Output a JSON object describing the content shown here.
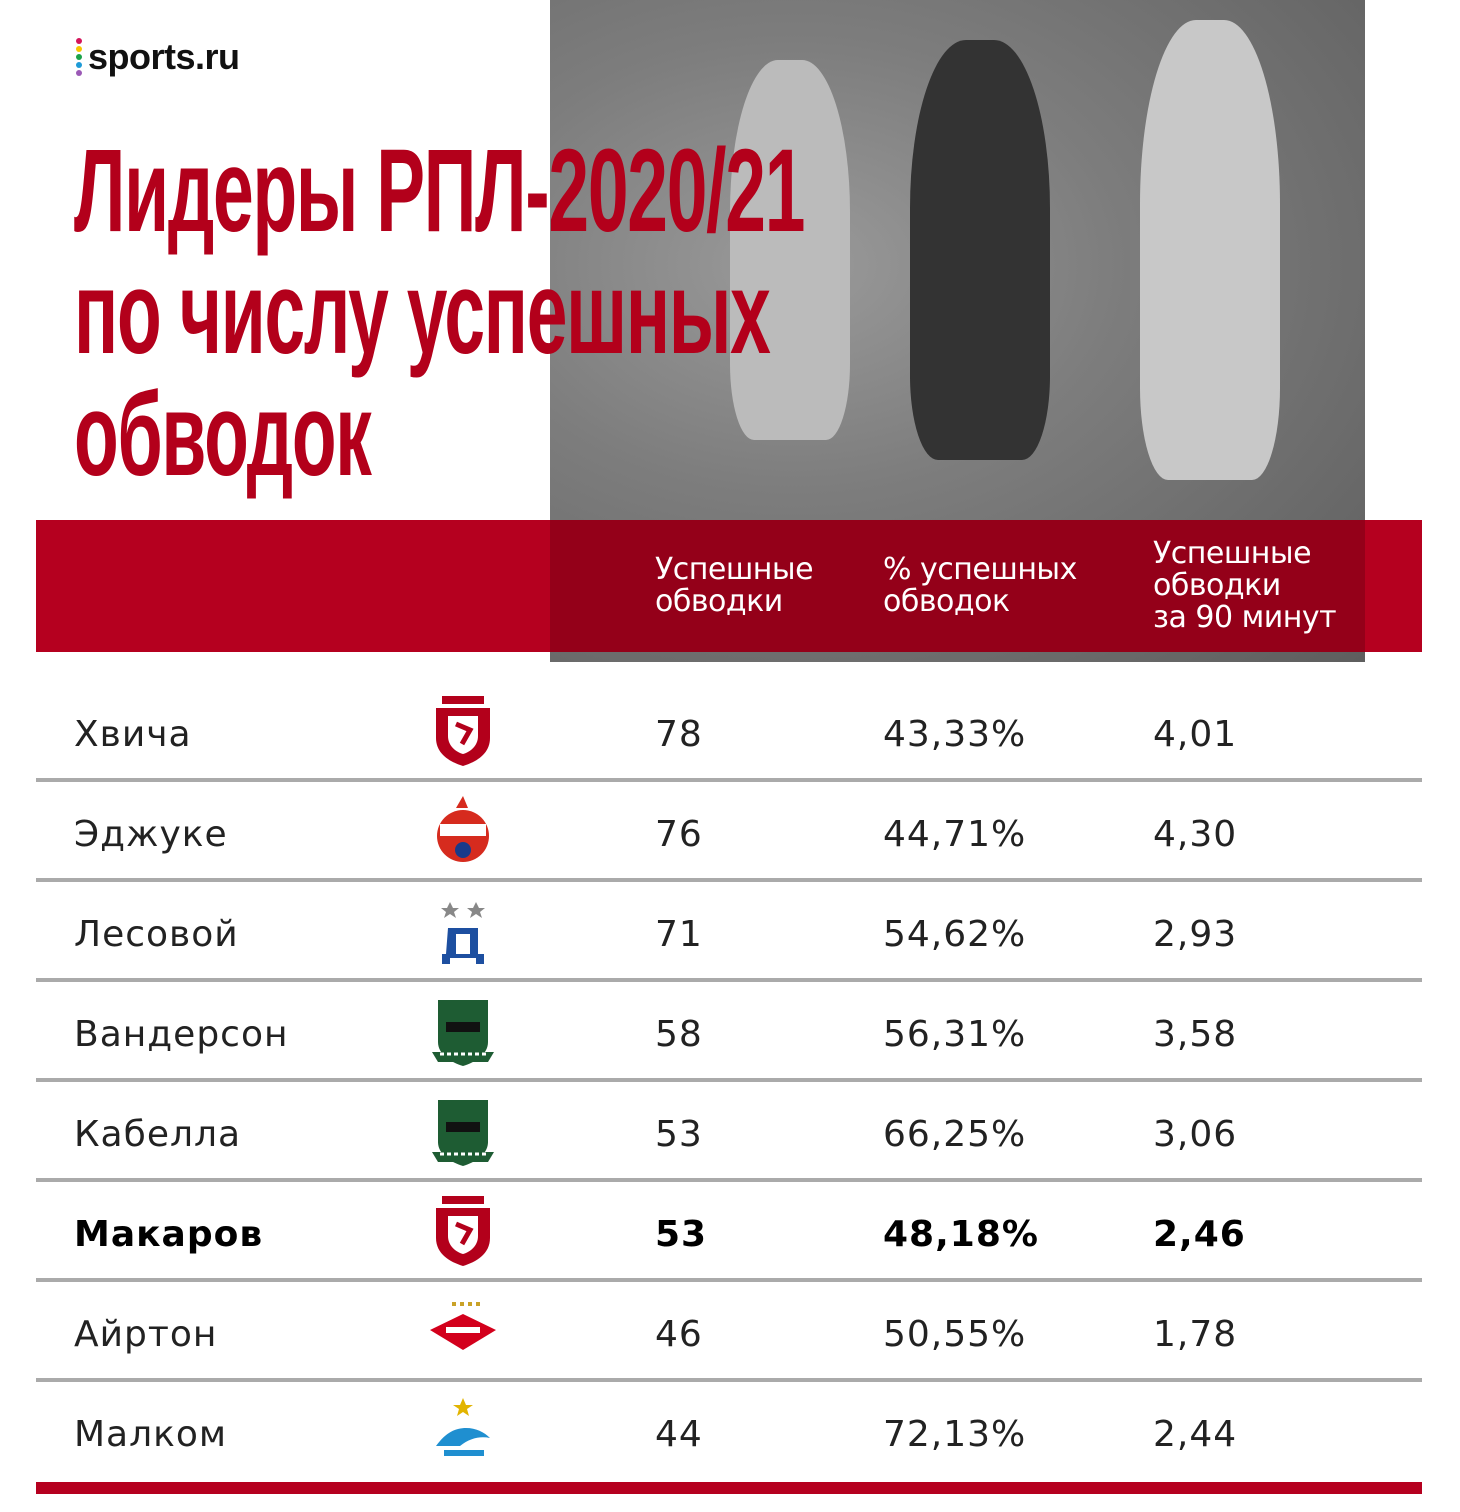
{
  "brand": {
    "name": "sports.ru",
    "dot_colors": [
      "#d4145a",
      "#f7c600",
      "#1aa34a",
      "#1e9bd7",
      "#9b59b6"
    ]
  },
  "title": {
    "line1": "Лидеры РПЛ-2020/21",
    "line2": "по числу успешных",
    "line3": "обводок"
  },
  "colors": {
    "accent": "#b5001f",
    "separator": "#aaaaaa"
  },
  "chart_data": {
    "type": "table",
    "columns": [
      {
        "key": "dribbles",
        "label_lines": [
          "Успешные",
          "обводки"
        ]
      },
      {
        "key": "pct",
        "label_lines": [
          "% успешных",
          "обводок"
        ]
      },
      {
        "key": "per90",
        "label_lines": [
          "Успешные",
          "обводки",
          "за 90 минут"
        ]
      }
    ],
    "rows": [
      {
        "player": "Хвича",
        "club_icon": "rubin-crest-icon",
        "dribbles": "78",
        "pct": "43,33%",
        "per90": "4,01",
        "highlight": false
      },
      {
        "player": "Эджуке",
        "club_icon": "cska-crest-icon",
        "dribbles": "76",
        "pct": "44,71%",
        "per90": "4,30",
        "highlight": false
      },
      {
        "player": "Лесовой",
        "club_icon": "dynamo-crest-icon",
        "dribbles": "71",
        "pct": "54,62%",
        "per90": "2,93",
        "highlight": false
      },
      {
        "player": "Вандерсон",
        "club_icon": "krasnodar-crest-icon",
        "dribbles": "58",
        "pct": "56,31%",
        "per90": "3,58",
        "highlight": false
      },
      {
        "player": "Кабелла",
        "club_icon": "krasnodar-crest-icon",
        "dribbles": "53",
        "pct": "66,25%",
        "per90": "3,06",
        "highlight": false
      },
      {
        "player": "Макаров",
        "club_icon": "rubin-crest-icon",
        "dribbles": "53",
        "pct": "48,18%",
        "per90": "2,46",
        "highlight": true
      },
      {
        "player": "Айртон",
        "club_icon": "spartak-crest-icon",
        "dribbles": "46",
        "pct": "50,55%",
        "per90": "1,78",
        "highlight": false
      },
      {
        "player": "Малком",
        "club_icon": "zenit-crest-icon",
        "dribbles": "44",
        "pct": "72,13%",
        "per90": "2,44",
        "highlight": false
      }
    ]
  }
}
